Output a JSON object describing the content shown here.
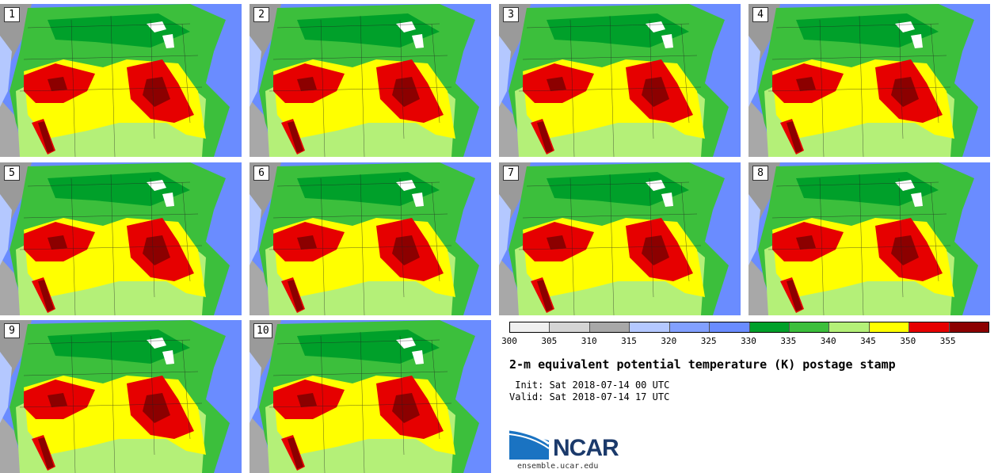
{
  "panels": [
    {
      "label": "1"
    },
    {
      "label": "2"
    },
    {
      "label": "3"
    },
    {
      "label": "4"
    },
    {
      "label": "5"
    },
    {
      "label": "6"
    },
    {
      "label": "7"
    },
    {
      "label": "8"
    },
    {
      "label": "9"
    },
    {
      "label": "10"
    }
  ],
  "colorbar": {
    "ticks": [
      "300",
      "305",
      "310",
      "315",
      "320",
      "325",
      "330",
      "335",
      "340",
      "345",
      "350",
      "355"
    ],
    "colors": [
      "#f0f0f0",
      "#d4d4d4",
      "#a8a8a8",
      "#b4c8ff",
      "#82a0ff",
      "#6a8cff",
      "#00a02a",
      "#3cbf3c",
      "#b4f078",
      "#ffff00",
      "#e60000",
      "#8c0000"
    ]
  },
  "title": "2-m equivalent potential temperature (K) postage stamp",
  "init": " Init: Sat 2018-07-14 00 UTC",
  "valid": "Valid: Sat 2018-07-14 17 UTC",
  "logo": {
    "name": "NCAR"
  },
  "url": "ensemble.ucar.edu"
}
